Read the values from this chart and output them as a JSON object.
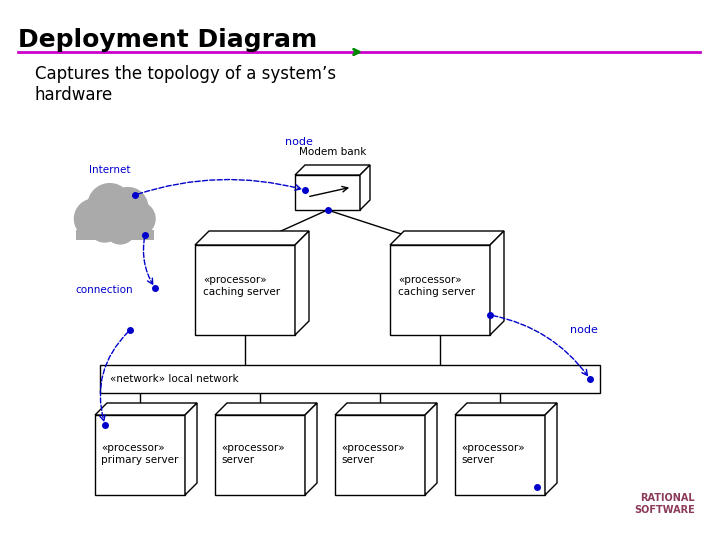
{
  "title": "Deployment Diagram",
  "subtitle": "Captures the topology of a system's\nhardware",
  "title_color": "#000000",
  "subtitle_color": "#000000",
  "line_color": "#cc00cc",
  "arrow_color": "#008000",
  "diagram_line_color": "#0000cc",
  "box_fill": "#ffffff",
  "box_edge": "#000000",
  "cloud_color": "#aaaaaa",
  "rational_color": "#8B3A5A",
  "background": "#ffffff",
  "node_labels": [
    "node",
    "node"
  ],
  "connection_label": "connection",
  "internet_label": "Internet",
  "modem_label": "Modem bank",
  "network_label": "«network» local network",
  "caching_label": "«processor»\ncaching server",
  "primary_label": "«processor»\nprimary server",
  "server_label": "«processor»\nserver"
}
